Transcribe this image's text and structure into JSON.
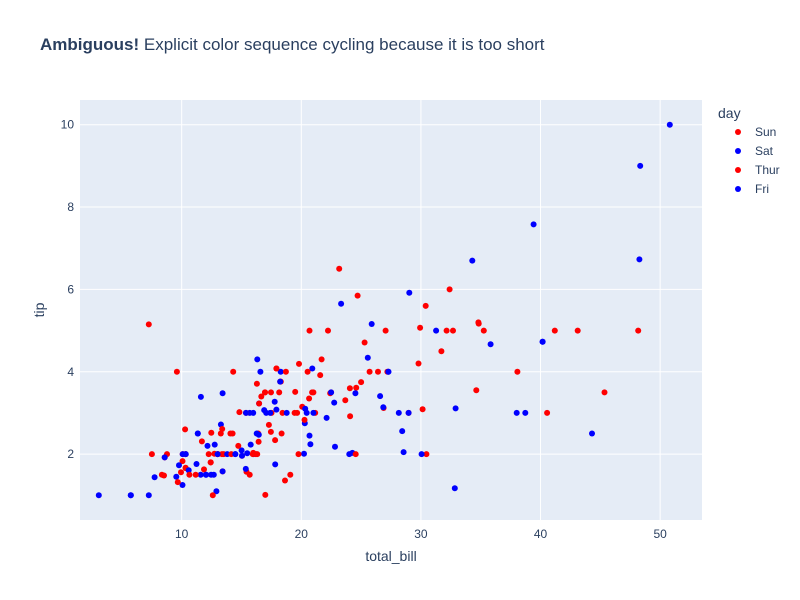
{
  "chart_data": {
    "type": "scatter",
    "title_bold": "Ambiguous!",
    "title_rest": " Explicit color sequence cycling because it is too short",
    "xlabel": "total_bill",
    "ylabel": "tip",
    "xlim": [
      1.5,
      53.5
    ],
    "ylim": [
      0.4,
      10.6
    ],
    "xticks": [
      10,
      20,
      30,
      40,
      50
    ],
    "yticks": [
      2,
      4,
      6,
      8,
      10
    ],
    "grid": true,
    "legend": {
      "title": "day",
      "placement": "right"
    },
    "plot_bg": "#e5ecf6",
    "grid_color": "#ffffff",
    "series": [
      {
        "name": "Sun",
        "color": "#ff0000",
        "points": [
          [
            7.25,
            5.15
          ],
          [
            9.6,
            4.0
          ],
          [
            10.33,
            1.67
          ],
          [
            10.29,
            2.6
          ],
          [
            10.07,
            1.83
          ],
          [
            10.34,
            1.66
          ],
          [
            13.37,
            2.0
          ],
          [
            14.83,
            3.02
          ],
          [
            15.04,
            1.96
          ],
          [
            16.29,
            3.71
          ],
          [
            16.97,
            3.5
          ],
          [
            17.46,
            2.54
          ],
          [
            17.92,
            4.08
          ],
          [
            18.15,
            3.5
          ],
          [
            18.43,
            3.0
          ],
          [
            19.81,
            4.19
          ],
          [
            20.65,
            3.35
          ],
          [
            20.69,
            5.0
          ],
          [
            21.01,
            3.5
          ],
          [
            21.58,
            3.92
          ],
          [
            23.68,
            3.31
          ],
          [
            24.06,
            3.6
          ],
          [
            24.59,
            3.61
          ],
          [
            25.29,
            4.71
          ],
          [
            26.41,
            4.0
          ],
          [
            26.88,
            3.12
          ],
          [
            27.2,
            4.0
          ],
          [
            29.93,
            5.07
          ],
          [
            30.46,
            2.0
          ],
          [
            31.71,
            4.5
          ],
          [
            32.4,
            6.0
          ],
          [
            34.81,
            5.2
          ],
          [
            35.26,
            5.0
          ],
          [
            38.07,
            4.0
          ],
          [
            40.55,
            3.0
          ],
          [
            45.35,
            3.5
          ],
          [
            48.17,
            5.0
          ],
          [
            8.77,
            2.0
          ],
          [
            12.43,
            1.8
          ],
          [
            14.07,
            2.5
          ],
          [
            15.42,
            1.57
          ],
          [
            16.31,
            2.0
          ],
          [
            16.99,
            1.01
          ],
          [
            17.81,
            2.34
          ],
          [
            18.29,
            3.76
          ],
          [
            19.65,
            3.0
          ],
          [
            21.7,
            4.3
          ],
          [
            22.23,
            5.0
          ],
          [
            23.17,
            6.5
          ],
          [
            24.71,
            5.85
          ],
          [
            25.0,
            3.75
          ],
          [
            28.97,
            3.0
          ],
          [
            30.14,
            3.09
          ],
          [
            34.63,
            3.55
          ],
          [
            16.4,
            2.5
          ],
          [
            17.51,
            3.0
          ],
          [
            18.24,
            3.76
          ],
          [
            20.08,
            3.15
          ],
          [
            13.51,
            2.0
          ],
          [
            19.44,
            3.0
          ]
        ]
      },
      {
        "name": "Sat",
        "color": "#0000ff",
        "points": [
          [
            3.07,
            1.0
          ],
          [
            5.75,
            1.0
          ],
          [
            7.25,
            1.0
          ],
          [
            7.74,
            1.44
          ],
          [
            9.55,
            1.45
          ],
          [
            10.07,
            1.25
          ],
          [
            10.34,
            2.0
          ],
          [
            10.59,
            1.61
          ],
          [
            11.24,
            1.76
          ],
          [
            11.35,
            2.5
          ],
          [
            12.03,
            1.5
          ],
          [
            12.69,
            1.5
          ],
          [
            12.9,
            1.1
          ],
          [
            13.28,
            2.72
          ],
          [
            13.81,
            2.0
          ],
          [
            14.48,
            2.0
          ],
          [
            15.36,
            1.64
          ],
          [
            15.69,
            3.0
          ],
          [
            15.77,
            2.23
          ],
          [
            16.47,
            3.23
          ],
          [
            16.58,
            4.0
          ],
          [
            17.07,
            3.0
          ],
          [
            17.82,
            1.75
          ],
          [
            17.92,
            3.08
          ],
          [
            18.28,
            4.0
          ],
          [
            20.29,
            2.75
          ],
          [
            20.45,
            3.0
          ],
          [
            20.23,
            2.01
          ],
          [
            20.69,
            2.45
          ],
          [
            20.92,
            4.08
          ],
          [
            22.12,
            2.88
          ],
          [
            22.82,
            2.18
          ],
          [
            23.33,
            5.65
          ],
          [
            24.01,
            2.0
          ],
          [
            24.52,
            3.48
          ],
          [
            25.56,
            4.34
          ],
          [
            25.89,
            5.16
          ],
          [
            26.59,
            3.41
          ],
          [
            27.28,
            4.0
          ],
          [
            28.15,
            3.0
          ],
          [
            28.44,
            2.56
          ],
          [
            29.03,
            5.92
          ],
          [
            30.06,
            2.0
          ],
          [
            31.27,
            5.0
          ],
          [
            32.83,
            1.17
          ],
          [
            34.3,
            6.7
          ],
          [
            35.83,
            4.67
          ],
          [
            38.01,
            3.0
          ],
          [
            38.73,
            3.0
          ],
          [
            39.42,
            7.58
          ],
          [
            40.17,
            4.73
          ],
          [
            44.3,
            2.5
          ],
          [
            48.27,
            6.73
          ],
          [
            48.33,
            9.0
          ],
          [
            50.81,
            10.0
          ],
          [
            13.0,
            2.0
          ],
          [
            15.48,
            2.02
          ],
          [
            16.45,
            2.47
          ],
          [
            17.78,
            3.27
          ],
          [
            18.78,
            3.0
          ],
          [
            9.78,
            1.73
          ],
          [
            11.59,
            1.5
          ],
          [
            12.76,
            2.23
          ],
          [
            15.01,
            2.09
          ],
          [
            16.0,
            2.0
          ],
          [
            20.76,
            2.24
          ],
          [
            24.27,
            2.03
          ],
          [
            26.86,
            3.14
          ],
          [
            28.55,
            2.05
          ],
          [
            32.9,
            3.11
          ]
        ]
      },
      {
        "name": "Thur",
        "color": "#ff0000",
        "points": [
          [
            7.51,
            2.0
          ],
          [
            8.52,
            1.48
          ],
          [
            9.68,
            1.32
          ],
          [
            10.09,
            2.0
          ],
          [
            10.65,
            1.5
          ],
          [
            11.87,
            1.63
          ],
          [
            12.26,
            2.0
          ],
          [
            12.48,
            2.52
          ],
          [
            13.0,
            2.0
          ],
          [
            13.42,
            1.58
          ],
          [
            14.31,
            4.0
          ],
          [
            15.38,
            3.0
          ],
          [
            15.69,
            1.5
          ],
          [
            16.43,
            2.3
          ],
          [
            16.66,
            3.4
          ],
          [
            18.35,
            2.5
          ],
          [
            19.49,
            3.51
          ],
          [
            20.27,
            2.83
          ],
          [
            20.53,
            4.0
          ],
          [
            21.16,
            3.0
          ],
          [
            22.49,
            3.5
          ],
          [
            24.08,
            2.92
          ],
          [
            25.71,
            4.0
          ],
          [
            27.05,
            5.0
          ],
          [
            29.8,
            4.2
          ],
          [
            32.68,
            5.0
          ],
          [
            34.83,
            5.17
          ],
          [
            41.19,
            5.0
          ],
          [
            43.11,
            5.0
          ],
          [
            8.35,
            1.5
          ],
          [
            11.69,
            2.31
          ],
          [
            12.74,
            2.01
          ],
          [
            13.39,
            2.61
          ],
          [
            14.26,
            2.5
          ],
          [
            15.95,
            2.0
          ],
          [
            17.29,
            2.71
          ],
          [
            17.92,
            4.08
          ],
          [
            19.77,
            2.0
          ],
          [
            19.08,
            1.5
          ],
          [
            18.71,
            4.0
          ],
          [
            16.97,
            3.5
          ],
          [
            16.47,
            3.23
          ],
          [
            14.15,
            2.0
          ],
          [
            12.6,
            1.0
          ],
          [
            9.94,
            1.56
          ],
          [
            8.58,
            1.92
          ],
          [
            10.33,
            2.0
          ],
          [
            11.17,
            1.5
          ],
          [
            12.43,
            1.8
          ],
          [
            13.03,
            2.0
          ],
          [
            13.27,
            2.5
          ],
          [
            14.73,
            2.2
          ],
          [
            15.98,
            2.03
          ],
          [
            16.21,
            2.0
          ],
          [
            17.47,
            3.5
          ],
          [
            18.64,
            1.36
          ],
          [
            20.9,
            3.5
          ],
          [
            24.55,
            2.0
          ],
          [
            30.4,
            5.6
          ],
          [
            32.15,
            5.0
          ],
          [
            22.42,
            3.48
          ]
        ]
      },
      {
        "name": "Fri",
        "color": "#0000ff",
        "points": [
          [
            5.75,
            1.0
          ],
          [
            8.58,
            1.92
          ],
          [
            10.09,
            2.0
          ],
          [
            11.35,
            2.5
          ],
          [
            12.03,
            1.5
          ],
          [
            12.16,
            2.2
          ],
          [
            12.46,
            1.5
          ],
          [
            13.42,
            3.48
          ],
          [
            15.38,
            3.0
          ],
          [
            15.98,
            3.0
          ],
          [
            16.27,
            2.5
          ],
          [
            16.32,
            4.3
          ],
          [
            21.01,
            3.0
          ],
          [
            22.75,
            3.25
          ],
          [
            27.28,
            4.0
          ],
          [
            28.97,
            3.0
          ],
          [
            40.17,
            4.73
          ],
          [
            10.34,
            2.0
          ],
          [
            13.42,
            1.58
          ],
          [
            22.49,
            3.5
          ],
          [
            11.61,
            3.39
          ],
          [
            13.0,
            2.0
          ],
          [
            18.24,
            3.76
          ],
          [
            15.04,
            1.96
          ],
          [
            16.9,
            3.07
          ],
          [
            14.48,
            2.0
          ],
          [
            20.33,
            3.1
          ],
          [
            17.4,
            3.0
          ]
        ]
      }
    ]
  }
}
